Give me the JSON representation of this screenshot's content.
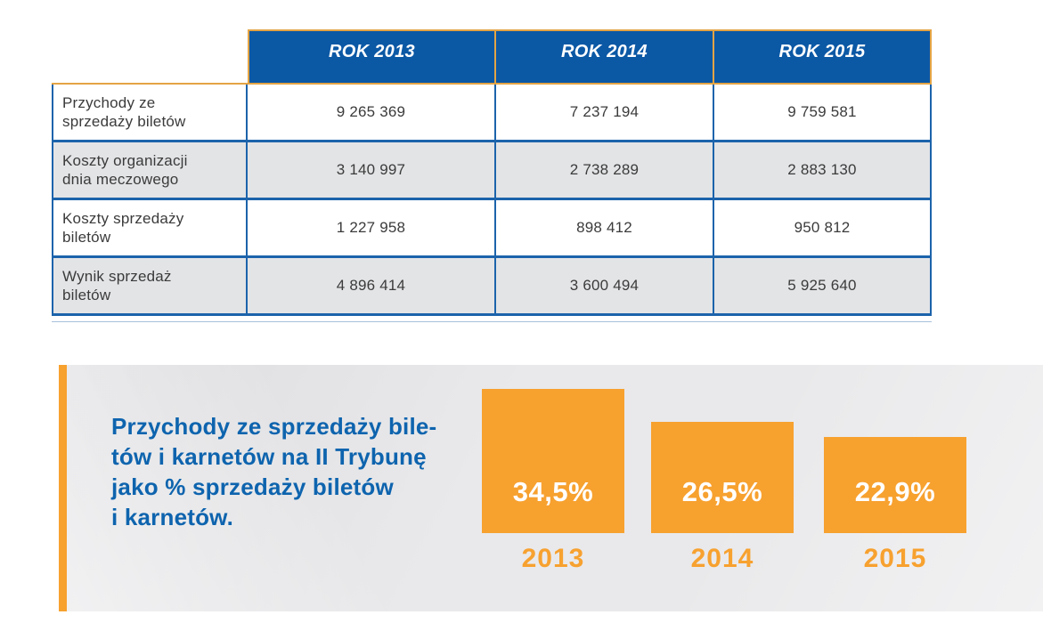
{
  "table": {
    "header": [
      "ROK 2013",
      "ROK 2014",
      "ROK 2015"
    ],
    "rows": [
      {
        "label": "Przychody ze sprzedaży biletów",
        "values": [
          "9 265 369",
          "7 237 194",
          "9 759 581"
        ]
      },
      {
        "label": "Koszty organizacji dnia meczowego",
        "values": [
          "3 140 997",
          "2 738 289",
          "2 883 130"
        ]
      },
      {
        "label": "Koszty sprzedaży biletów",
        "values": [
          "1 227 958",
          "898 412",
          "950 812"
        ]
      },
      {
        "label": "Wynik sprzedaż biletów",
        "values": [
          "4 896 414",
          "3 600 494",
          "5 925 640"
        ]
      }
    ]
  },
  "panel": {
    "title_lines": [
      "Przychody ze sprzedaży bile-",
      "tów i karnetów na II Trybunę",
      "jako % sprzedaży biletów",
      "i karnetów."
    ]
  },
  "chart_data": {
    "type": "bar",
    "categories": [
      "2013",
      "2014",
      "2015"
    ],
    "values": [
      34.5,
      26.5,
      22.9
    ],
    "value_labels": [
      "34,5%",
      "26,5%",
      "22,9%"
    ],
    "unit": "%",
    "title": "Przychody ze sprzedaży biletów i karnetów na II Trybunę jako % sprzedaży biletów i karnetów.",
    "ylim": [
      0,
      40
    ],
    "legend": false,
    "grid": false,
    "bar_color": "#f7a12f",
    "value_label_color": "#ffffff",
    "category_label_color": "#f7a12f"
  },
  "colors": {
    "header_blue": "#0b58a5",
    "border_blue": "#1c63ab",
    "orange_accent": "#f7a12f",
    "orange_header_border": "#e4a444",
    "row_alt_gray": "#e3e4e6",
    "panel_gray": "#e9e9eb",
    "title_blue": "#0e64ae",
    "body_text": "#3b3b3b"
  }
}
